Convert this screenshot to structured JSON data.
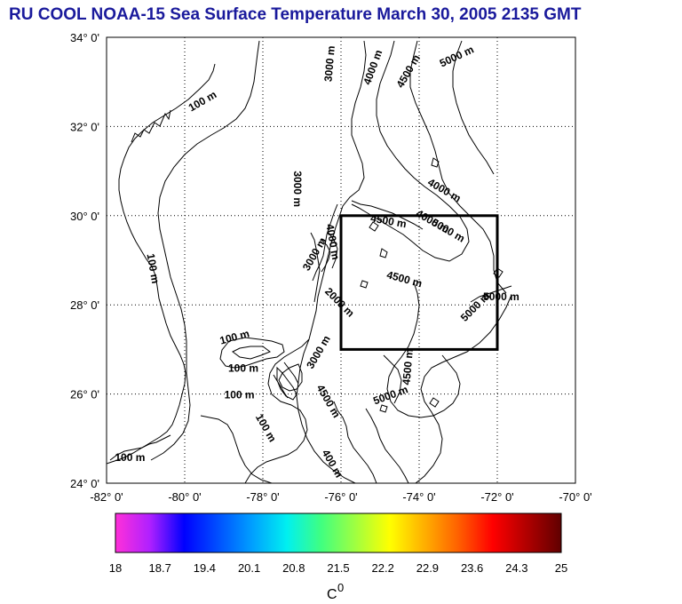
{
  "title": "RU COOL  NOAA-15 Sea Surface Temperature March 30, 2005 2135 GMT",
  "map": {
    "lon_range": [
      -82,
      -70
    ],
    "lat_range": [
      24,
      34
    ],
    "grid": "dotted",
    "x_tick_labels": [
      "-82° 0'",
      "-80° 0'",
      "-78° 0'",
      "-76° 0'",
      "-74° 0'",
      "-72° 0'",
      "-70° 0'"
    ],
    "y_tick_labels": [
      "34° 0'",
      "32° 0'",
      "30° 0'",
      "28° 0'",
      "26° 0'",
      "24° 0'"
    ],
    "highlight_box": {
      "lon": [
        -76,
        -72
      ],
      "lat": [
        27,
        30
      ]
    },
    "contour_labels": [
      {
        "text": "100 m",
        "lon": -79.5,
        "lat": 32.5,
        "rot": -30
      },
      {
        "text": "100 m",
        "lon": -80.9,
        "lat": 28.8,
        "rot": 80
      },
      {
        "text": "100 m",
        "lon": -81.4,
        "lat": 24.5,
        "rot": 0
      },
      {
        "text": "100 m",
        "lon": -78.7,
        "lat": 27.2,
        "rot": -15
      },
      {
        "text": "100 m",
        "lon": -78.5,
        "lat": 26.5,
        "rot": 0
      },
      {
        "text": "100 m",
        "lon": -78.6,
        "lat": 25.9,
        "rot": 0
      },
      {
        "text": "100 m",
        "lon": -78.0,
        "lat": 25.2,
        "rot": 60
      },
      {
        "text": "400 m",
        "lon": -76.3,
        "lat": 24.4,
        "rot": 60
      },
      {
        "text": "3000 m",
        "lon": -76.2,
        "lat": 33.4,
        "rot": -85
      },
      {
        "text": "4000 m",
        "lon": -75.1,
        "lat": 33.3,
        "rot": -70
      },
      {
        "text": "4500 m",
        "lon": -74.2,
        "lat": 33.2,
        "rot": -60
      },
      {
        "text": "5000 m",
        "lon": -73.0,
        "lat": 33.5,
        "rot": -25
      },
      {
        "text": "3000 m",
        "lon": -77.2,
        "lat": 30.6,
        "rot": 90
      },
      {
        "text": "4000 m",
        "lon": -73.4,
        "lat": 30.5,
        "rot": 30
      },
      {
        "text": "4000 m",
        "lon": -73.7,
        "lat": 29.8,
        "rot": 30
      },
      {
        "text": "5000 m",
        "lon": -73.3,
        "lat": 29.6,
        "rot": 30
      },
      {
        "text": "4500 m",
        "lon": -74.8,
        "lat": 29.8,
        "rot": 10
      },
      {
        "text": "4500 m",
        "lon": -74.4,
        "lat": 28.5,
        "rot": 15
      },
      {
        "text": "4000 m",
        "lon": -76.3,
        "lat": 29.4,
        "rot": 80
      },
      {
        "text": "3000 m",
        "lon": -76.6,
        "lat": 29.1,
        "rot": -60
      },
      {
        "text": "2000 m",
        "lon": -76.1,
        "lat": 28.0,
        "rot": 45
      },
      {
        "text": "5000 m",
        "lon": -72.5,
        "lat": 27.9,
        "rot": -45
      },
      {
        "text": "5000 m",
        "lon": -71.9,
        "lat": 28.1,
        "rot": 0
      },
      {
        "text": "4500 m",
        "lon": -74.2,
        "lat": 26.6,
        "rot": -85
      },
      {
        "text": "3000 m",
        "lon": -76.5,
        "lat": 26.9,
        "rot": -60
      },
      {
        "text": "4500 m",
        "lon": -76.4,
        "lat": 25.8,
        "rot": 60
      },
      {
        "text": "5000 m",
        "lon": -74.7,
        "lat": 25.9,
        "rot": -20
      }
    ]
  },
  "colorbar": {
    "tick_labels": [
      "18",
      "18.7",
      "19.4",
      "20.1",
      "20.8",
      "21.5",
      "22.2",
      "22.9",
      "23.6",
      "24.3",
      "25"
    ],
    "unit": "C",
    "unit_superscript": "0",
    "colors": [
      "#ff30d8",
      "#b020ff",
      "#0000ff",
      "#0050ff",
      "#00a0ff",
      "#00f0f0",
      "#40ff80",
      "#a0ff40",
      "#ffff00",
      "#ffb000",
      "#ff6000",
      "#ff0000",
      "#b00000",
      "#600000"
    ]
  }
}
